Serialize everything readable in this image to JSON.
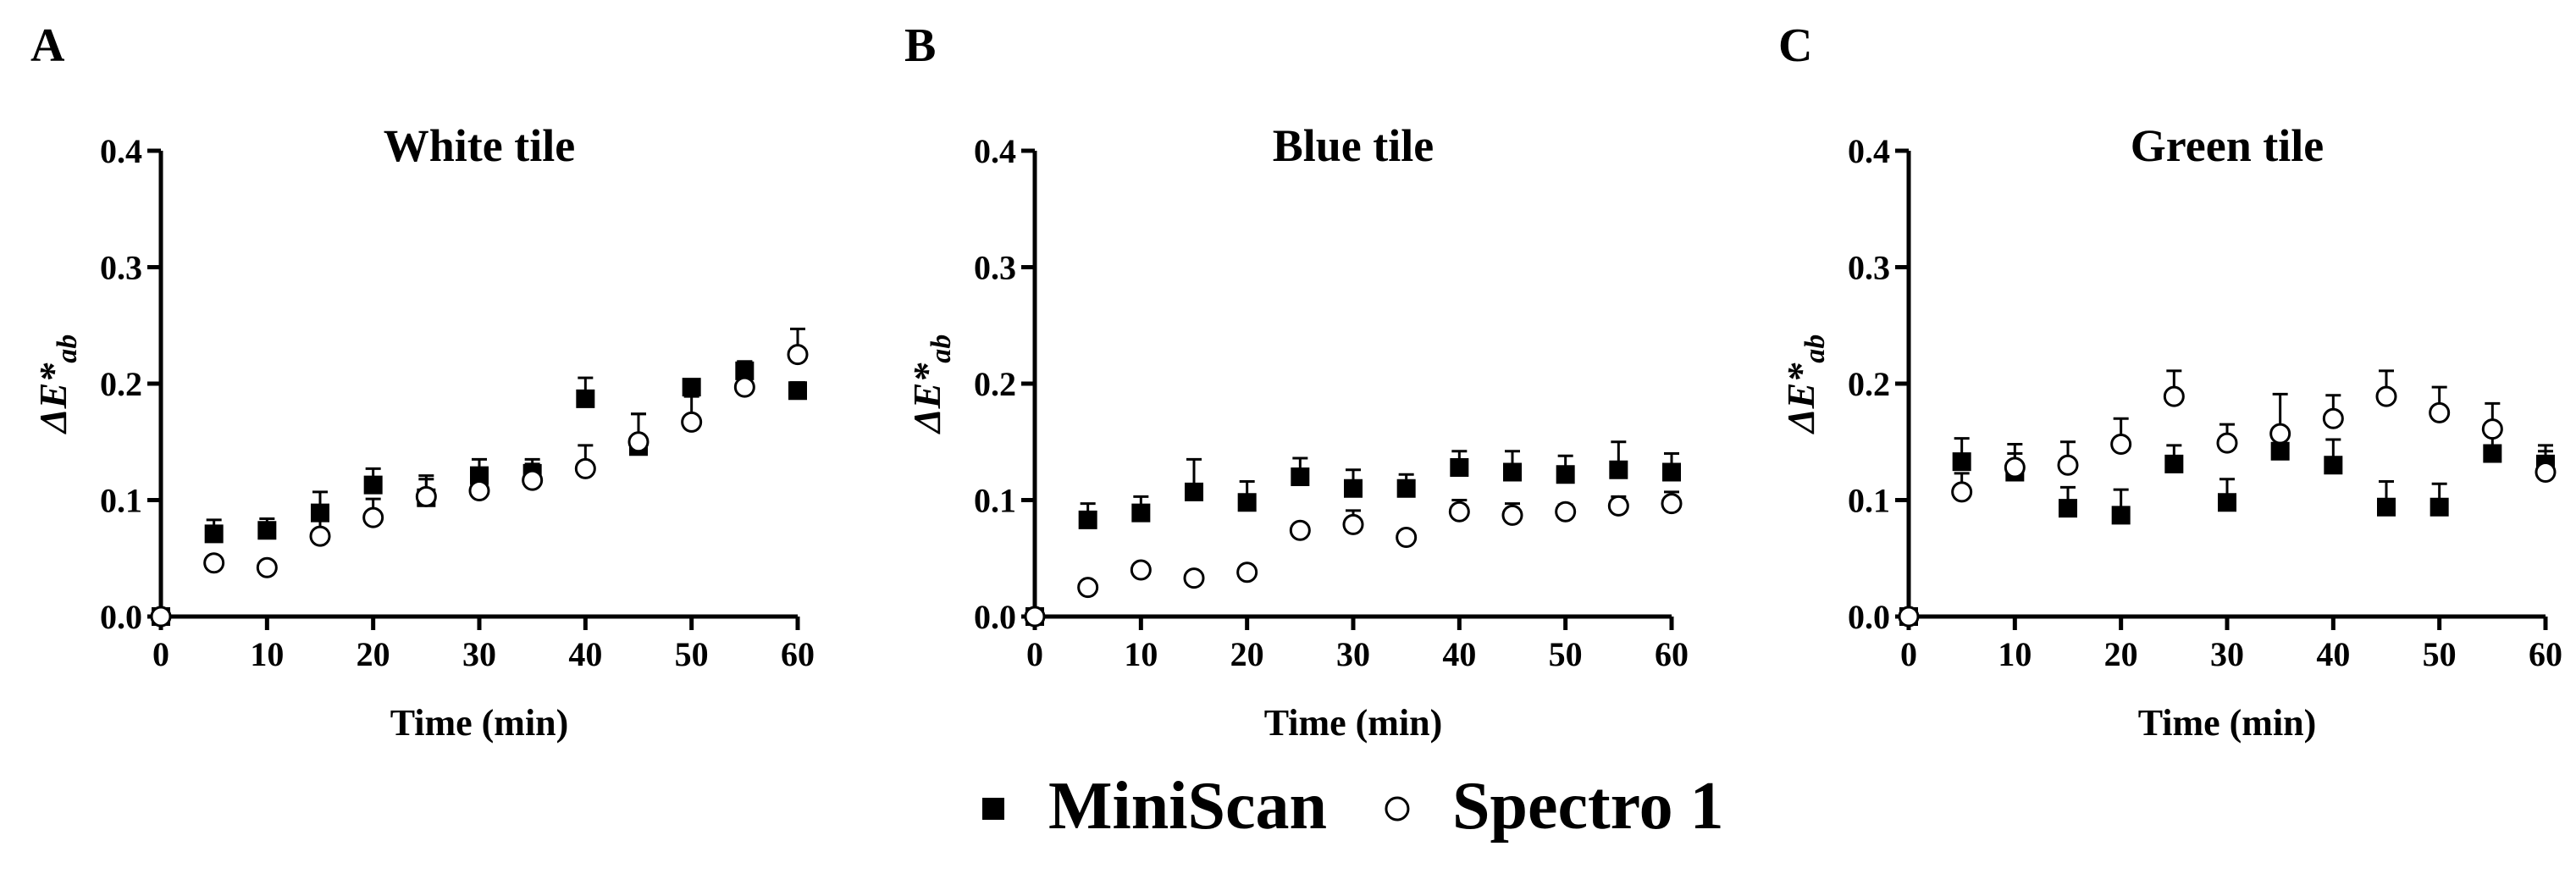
{
  "chart_data": [
    {
      "type": "scatter",
      "panel": "A",
      "title": "White tile",
      "xlabel": "Time (min)",
      "ylabel_main": "ΔE*",
      "ylabel_sub": "ab",
      "xlim": [
        0,
        60
      ],
      "ylim": [
        0,
        0.4
      ],
      "xticks": [
        0,
        10,
        20,
        30,
        40,
        50,
        60
      ],
      "yticks": [
        "0.0",
        "0.1",
        "0.2",
        "0.3",
        "0.4"
      ],
      "series": [
        {
          "name": "MiniScan",
          "marker": "square",
          "x": [
            0,
            5,
            10,
            15,
            20,
            25,
            30,
            35,
            40,
            45,
            50,
            55,
            60
          ],
          "y": [
            0.0,
            0.071,
            0.074,
            0.089,
            0.113,
            0.102,
            0.121,
            0.123,
            0.187,
            0.146,
            0.197,
            0.211,
            0.194
          ],
          "err": [
            0,
            0.012,
            0.01,
            0.018,
            0.014,
            0.016,
            0.014,
            0.012,
            0.018,
            0.028,
            0.006,
            0.008,
            0.007
          ]
        },
        {
          "name": "Spectro 1",
          "marker": "circle",
          "x": [
            0,
            5,
            10,
            15,
            20,
            25,
            30,
            35,
            40,
            45,
            50,
            55,
            60
          ],
          "y": [
            0.0,
            0.046,
            0.042,
            0.069,
            0.085,
            0.103,
            0.108,
            0.117,
            0.127,
            0.15,
            0.167,
            0.197,
            0.225
          ],
          "err": [
            0,
            0.004,
            0.004,
            0.014,
            0.016,
            0.018,
            0.012,
            0.014,
            0.02,
            0.024,
            0.022,
            0.022,
            0.022
          ]
        }
      ]
    },
    {
      "type": "scatter",
      "panel": "B",
      "title": "Blue tile",
      "xlabel": "Time (min)",
      "ylabel_main": "ΔE*",
      "ylabel_sub": "ab",
      "xlim": [
        0,
        60
      ],
      "ylim": [
        0,
        0.4
      ],
      "xticks": [
        0,
        10,
        20,
        30,
        40,
        50,
        60
      ],
      "yticks": [
        "0.0",
        "0.1",
        "0.2",
        "0.3",
        "0.4"
      ],
      "series": [
        {
          "name": "MiniScan",
          "marker": "square",
          "x": [
            0,
            5,
            10,
            15,
            20,
            25,
            30,
            35,
            40,
            45,
            50,
            55,
            60
          ],
          "y": [
            0.0,
            0.083,
            0.089,
            0.107,
            0.098,
            0.12,
            0.11,
            0.11,
            0.128,
            0.124,
            0.122,
            0.126,
            0.124
          ],
          "err": [
            0,
            0.014,
            0.014,
            0.028,
            0.018,
            0.016,
            0.016,
            0.012,
            0.014,
            0.018,
            0.016,
            0.024,
            0.016
          ]
        },
        {
          "name": "Spectro 1",
          "marker": "circle",
          "x": [
            0,
            5,
            10,
            15,
            20,
            25,
            30,
            35,
            40,
            45,
            50,
            55,
            60
          ],
          "y": [
            0.0,
            0.025,
            0.04,
            0.033,
            0.038,
            0.074,
            0.079,
            0.068,
            0.09,
            0.087,
            0.09,
            0.095,
            0.097
          ],
          "err": [
            0,
            0.002,
            0.004,
            0.003,
            0.003,
            0.004,
            0.012,
            0.004,
            0.01,
            0.01,
            0.006,
            0.008,
            0.01
          ]
        }
      ]
    },
    {
      "type": "scatter",
      "panel": "C",
      "title": "Green tile",
      "xlabel": "Time (min)",
      "ylabel_main": "ΔE*",
      "ylabel_sub": "ab",
      "xlim": [
        0,
        60
      ],
      "ylim": [
        0,
        0.4
      ],
      "xticks": [
        0,
        10,
        20,
        30,
        40,
        50,
        60
      ],
      "yticks": [
        "0.0",
        "0.1",
        "0.2",
        "0.3",
        "0.4"
      ],
      "series": [
        {
          "name": "MiniScan",
          "marker": "square",
          "x": [
            0,
            5,
            10,
            15,
            20,
            25,
            30,
            35,
            40,
            45,
            50,
            55,
            60
          ],
          "y": [
            0.0,
            0.133,
            0.124,
            0.093,
            0.087,
            0.131,
            0.098,
            0.142,
            0.13,
            0.094,
            0.094,
            0.14,
            0.131
          ],
          "err": [
            0,
            0.02,
            0.016,
            0.018,
            0.022,
            0.016,
            0.02,
            0.014,
            0.022,
            0.022,
            0.02,
            0.022,
            0.016
          ]
        },
        {
          "name": "Spectro 1",
          "marker": "circle",
          "x": [
            0,
            5,
            10,
            15,
            20,
            25,
            30,
            35,
            40,
            45,
            50,
            55,
            60
          ],
          "y": [
            0.0,
            0.107,
            0.128,
            0.13,
            0.148,
            0.189,
            0.149,
            0.157,
            0.17,
            0.189,
            0.175,
            0.161,
            0.124
          ],
          "err": [
            0,
            0.016,
            0.02,
            0.02,
            0.022,
            0.022,
            0.016,
            0.034,
            0.02,
            0.022,
            0.022,
            0.022,
            0.018
          ]
        }
      ]
    }
  ],
  "legend": {
    "position": "bottom-center",
    "items": [
      {
        "name": "MiniScan",
        "marker": "square"
      },
      {
        "name": "Spectro 1",
        "marker": "circle"
      }
    ]
  }
}
